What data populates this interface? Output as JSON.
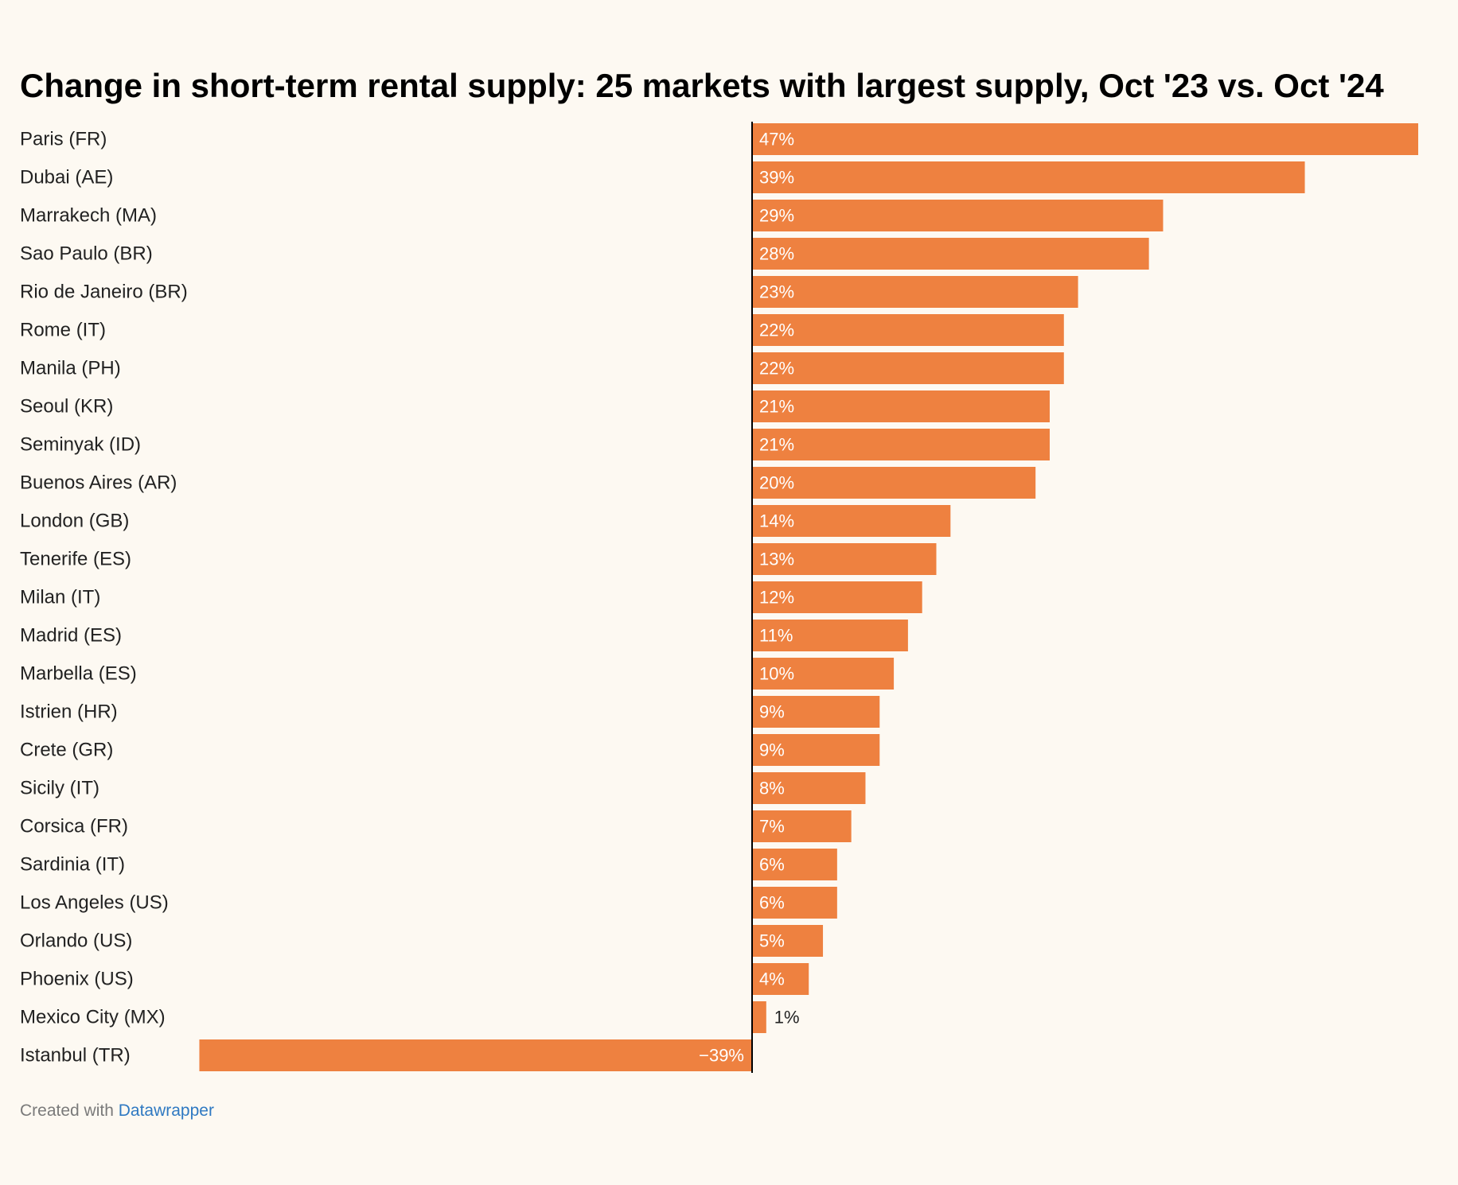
{
  "chart_data": {
    "type": "bar",
    "orientation": "horizontal",
    "title": "Change in short-term rental supply: 25 markets with largest supply, Oct '23 vs. Oct '24",
    "xlabel": "",
    "ylabel": "",
    "xlim": [
      -39,
      47
    ],
    "value_suffix": "%",
    "grid": false,
    "categories": [
      "Paris (FR)",
      "Dubai (AE)",
      "Marrakech (MA)",
      "Sao Paulo (BR)",
      "Rio de Janeiro (BR)",
      "Rome (IT)",
      "Manila (PH)",
      "Seoul (KR)",
      "Seminyak (ID)",
      "Buenos Aires (AR)",
      "London (GB)",
      "Tenerife (ES)",
      "Milan (IT)",
      "Madrid (ES)",
      "Marbella (ES)",
      "Istrien (HR)",
      "Crete (GR)",
      "Sicily (IT)",
      "Corsica (FR)",
      "Sardinia (IT)",
      "Los Angeles (US)",
      "Orlando (US)",
      "Phoenix (US)",
      "Mexico City (MX)",
      "Istanbul (TR)"
    ],
    "values": [
      47,
      39,
      29,
      28,
      23,
      22,
      22,
      21,
      21,
      20,
      14,
      13,
      12,
      11,
      10,
      9,
      9,
      8,
      7,
      6,
      6,
      5,
      4,
      1,
      -39
    ],
    "value_labels": [
      "47%",
      "39%",
      "29%",
      "28%",
      "23%",
      "22%",
      "22%",
      "21%",
      "21%",
      "20%",
      "14%",
      "13%",
      "12%",
      "11%",
      "10%",
      "9%",
      "9%",
      "8%",
      "7%",
      "6%",
      "6%",
      "5%",
      "4%",
      "1%",
      "−39%"
    ],
    "bar_color": "#ee8140",
    "axis_color": "#000000"
  },
  "footer": {
    "prefix": "Created with ",
    "link_text": "Datawrapper"
  }
}
